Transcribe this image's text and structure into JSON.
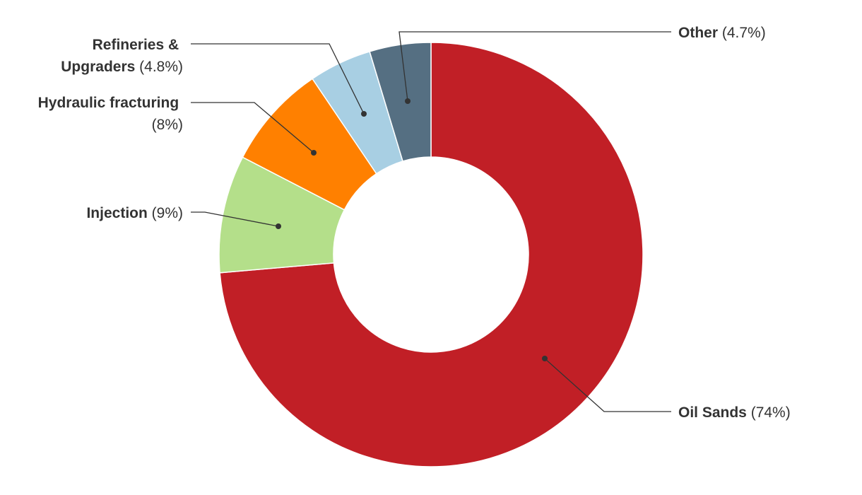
{
  "chart_data": {
    "type": "pie",
    "donut": true,
    "start": "12 o'clock, clockwise",
    "legend": "none (leader-line labels)",
    "slices": [
      {
        "label": "Oil Sands",
        "value": 74,
        "display": "(74%)",
        "color": "#c11f26"
      },
      {
        "label": "Injection",
        "value": 9,
        "display": "(9%)",
        "color": "#b4df8a"
      },
      {
        "label": "Hydraulic fracturing",
        "value": 8,
        "display": "(8%)",
        "color": "#ff8000"
      },
      {
        "label": "Refineries & Upgraders",
        "value": 4.8,
        "display": "(4.8%)",
        "color": "#a8cfe3"
      },
      {
        "label": "Other",
        "value": 4.7,
        "display": "(4.7%)",
        "color": "#556f82"
      }
    ]
  }
}
